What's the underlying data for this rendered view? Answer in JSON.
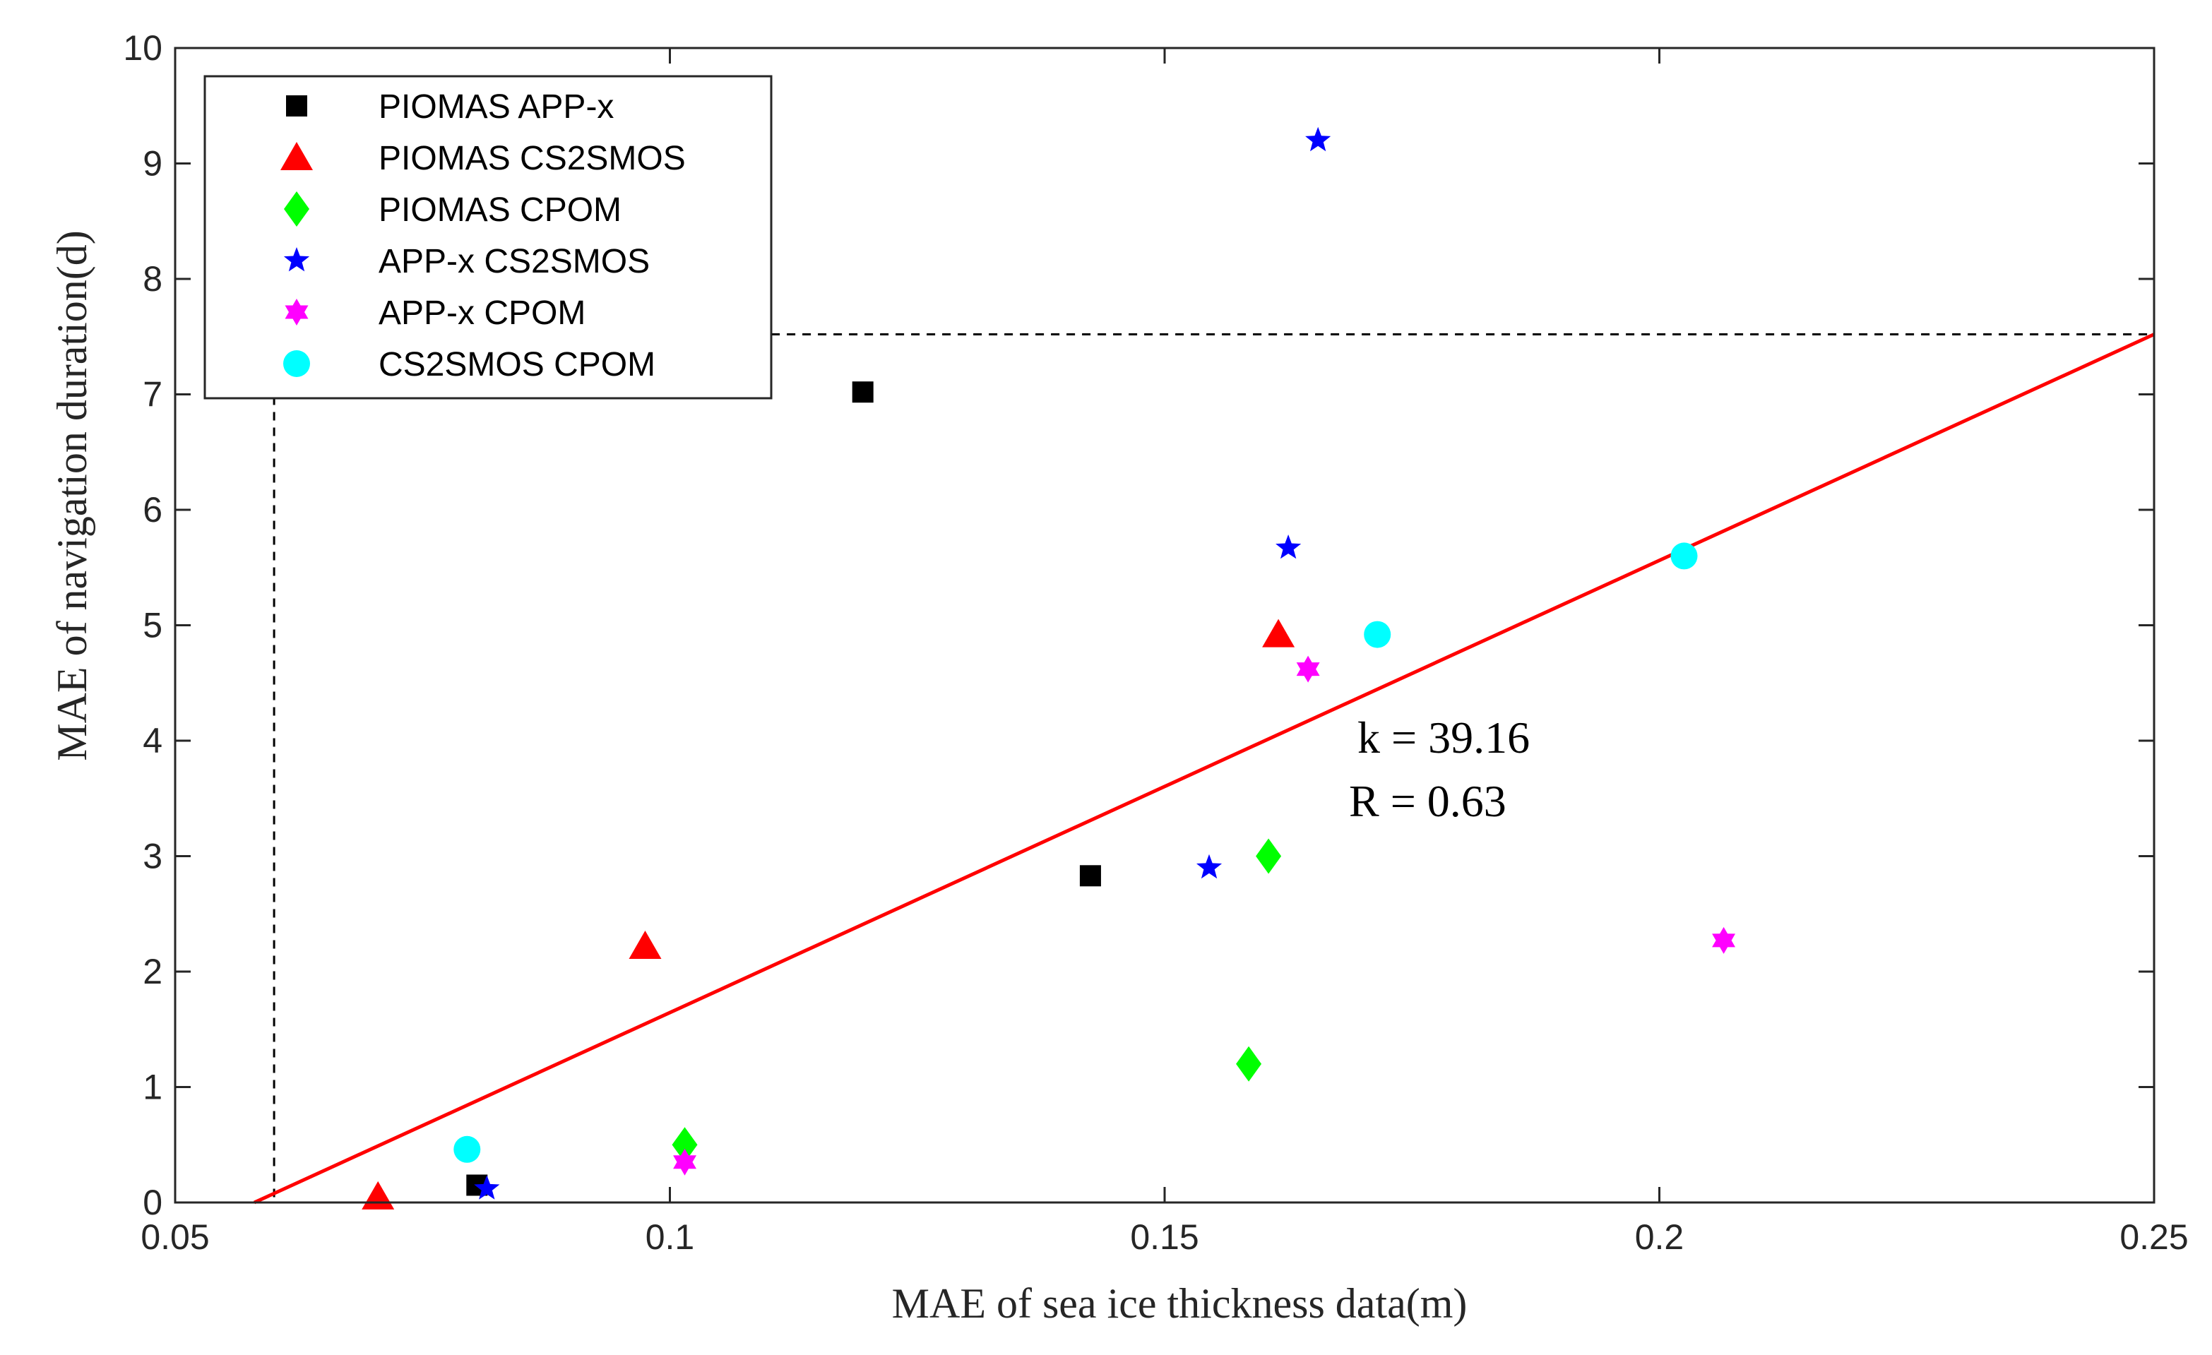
{
  "chart_data": {
    "type": "scatter",
    "title": "",
    "xlabel": "MAE of sea ice thickness data(m)",
    "ylabel": "MAE of navigation duration(d)",
    "xlim": [
      0.05,
      0.25
    ],
    "ylim": [
      0,
      10
    ],
    "xticks": [
      0.05,
      0.1,
      0.15,
      0.2,
      0.25
    ],
    "xtick_labels": [
      "0.05",
      "0.1",
      "0.15",
      "0.2",
      "0.25"
    ],
    "yticks": [
      0,
      1,
      2,
      3,
      4,
      5,
      6,
      7,
      8,
      9,
      10
    ],
    "ytick_labels": [
      "0",
      "1",
      "2",
      "3",
      "4",
      "5",
      "6",
      "7",
      "8",
      "9",
      "10"
    ],
    "grid": false,
    "legend_position": "top-left",
    "series": [
      {
        "name": "PIOMAS  APP-x",
        "marker": "square",
        "color": "#000000",
        "points": [
          [
            0.0805,
            0.15
          ],
          [
            0.1195,
            7.02
          ],
          [
            0.1425,
            2.83
          ]
        ]
      },
      {
        "name": "PIOMAS  CS2SMOS",
        "marker": "triangle",
        "color": "#ff0000",
        "points": [
          [
            0.0705,
            0.05
          ],
          [
            0.0975,
            2.22
          ],
          [
            0.1615,
            4.92
          ]
        ]
      },
      {
        "name": "PIOMAS  CPOM",
        "marker": "diamond",
        "color": "#00ff00",
        "points": [
          [
            0.1015,
            0.5
          ],
          [
            0.1585,
            1.2
          ],
          [
            0.1605,
            3.0
          ]
        ]
      },
      {
        "name": "APP-x  CS2SMOS",
        "marker": "star",
        "color": "#0000ff",
        "points": [
          [
            0.0815,
            0.12
          ],
          [
            0.1545,
            2.9
          ],
          [
            0.1625,
            5.67
          ],
          [
            0.1655,
            9.2
          ]
        ]
      },
      {
        "name": "APP-x  CPOM",
        "marker": "hexagram",
        "color": "#ff00ff",
        "points": [
          [
            0.1015,
            0.35
          ],
          [
            0.1645,
            4.62
          ],
          [
            0.2065,
            2.27
          ]
        ]
      },
      {
        "name": "CS2SMOS  CPOM",
        "marker": "circle",
        "color": "#00ffff",
        "points": [
          [
            0.0795,
            0.46
          ],
          [
            0.1715,
            4.92
          ],
          [
            0.2025,
            5.6
          ]
        ]
      }
    ],
    "fit_line": {
      "color": "#ff0000",
      "from": [
        0.058,
        0
      ],
      "to": [
        0.25,
        7.52
      ]
    },
    "dashed_box": {
      "x0": 0.06,
      "x1": 0.25,
      "y0": 0,
      "y1": 7.52
    },
    "annotations": [
      "k = 39.16",
      "R = 0.63"
    ]
  }
}
